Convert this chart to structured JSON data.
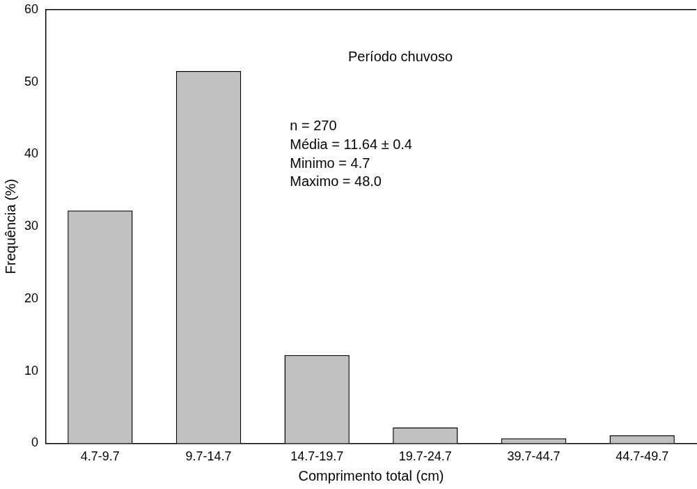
{
  "chart_data": {
    "type": "bar",
    "xlabel": "Comprimento total (cm)",
    "ylabel": "Frequência (%)",
    "categories": [
      "4.7-9.7",
      "9.7-14.7",
      "14.7-19.7",
      "19.7-24.7",
      "39.7-44.7",
      "44.7-49.7"
    ],
    "values": [
      32.2,
      51.5,
      12.2,
      2.2,
      0.7,
      1.1
    ],
    "color": "#c0c0c0",
    "ylim": [
      0,
      60
    ],
    "yticks": [
      0,
      10,
      20,
      30,
      40,
      50,
      60
    ],
    "grid": false,
    "legend": false,
    "annotations": [
      "Período chuvoso",
      "n = 270",
      "Média = 11.64 ± 0.4",
      "Minimo = 4.7",
      "Maximo = 48.0"
    ]
  }
}
